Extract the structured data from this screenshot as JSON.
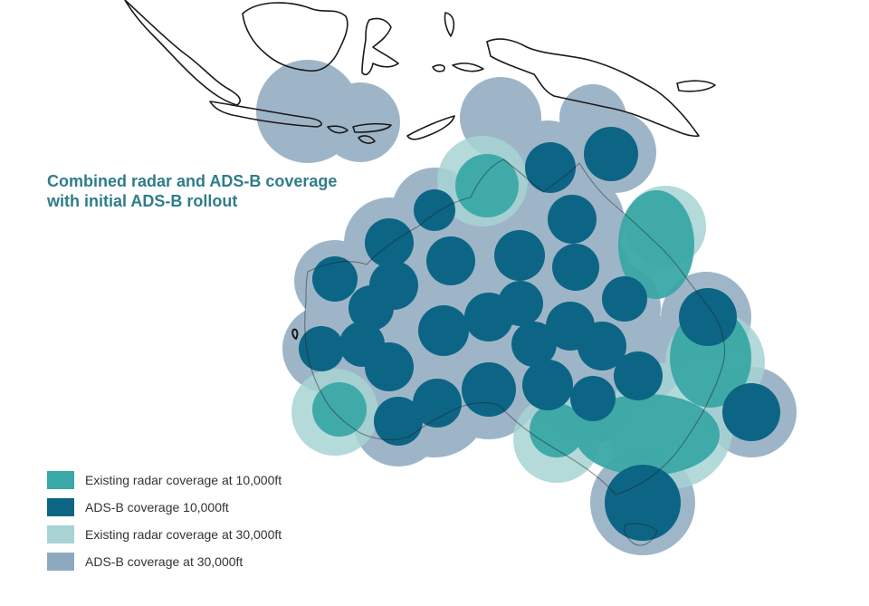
{
  "title": {
    "line1": "Combined radar and ADS-B coverage",
    "line2": "with initial ADS-B rollout"
  },
  "legend": [
    {
      "label": "Existing radar coverage at 10,000ft",
      "color": "#3aa8a6"
    },
    {
      "label": "ADS-B coverage 10,000ft",
      "color": "#0d6585"
    },
    {
      "label": "Existing radar coverage at 30,000ft",
      "color": "#a7d3d4"
    },
    {
      "label": "ADS-B coverage at 30,000ft",
      "color": "#8ea9bf"
    }
  ],
  "colors": {
    "coastline": "#1a1a1a",
    "title": "#2e7d8a",
    "ads_b_30000_fill": "#8ea9bf",
    "radar_30000_fill": "#a7d3d4",
    "radar_10000_fill": "#3aa8a6",
    "ads_b_10000_fill": "#0d6585"
  }
}
